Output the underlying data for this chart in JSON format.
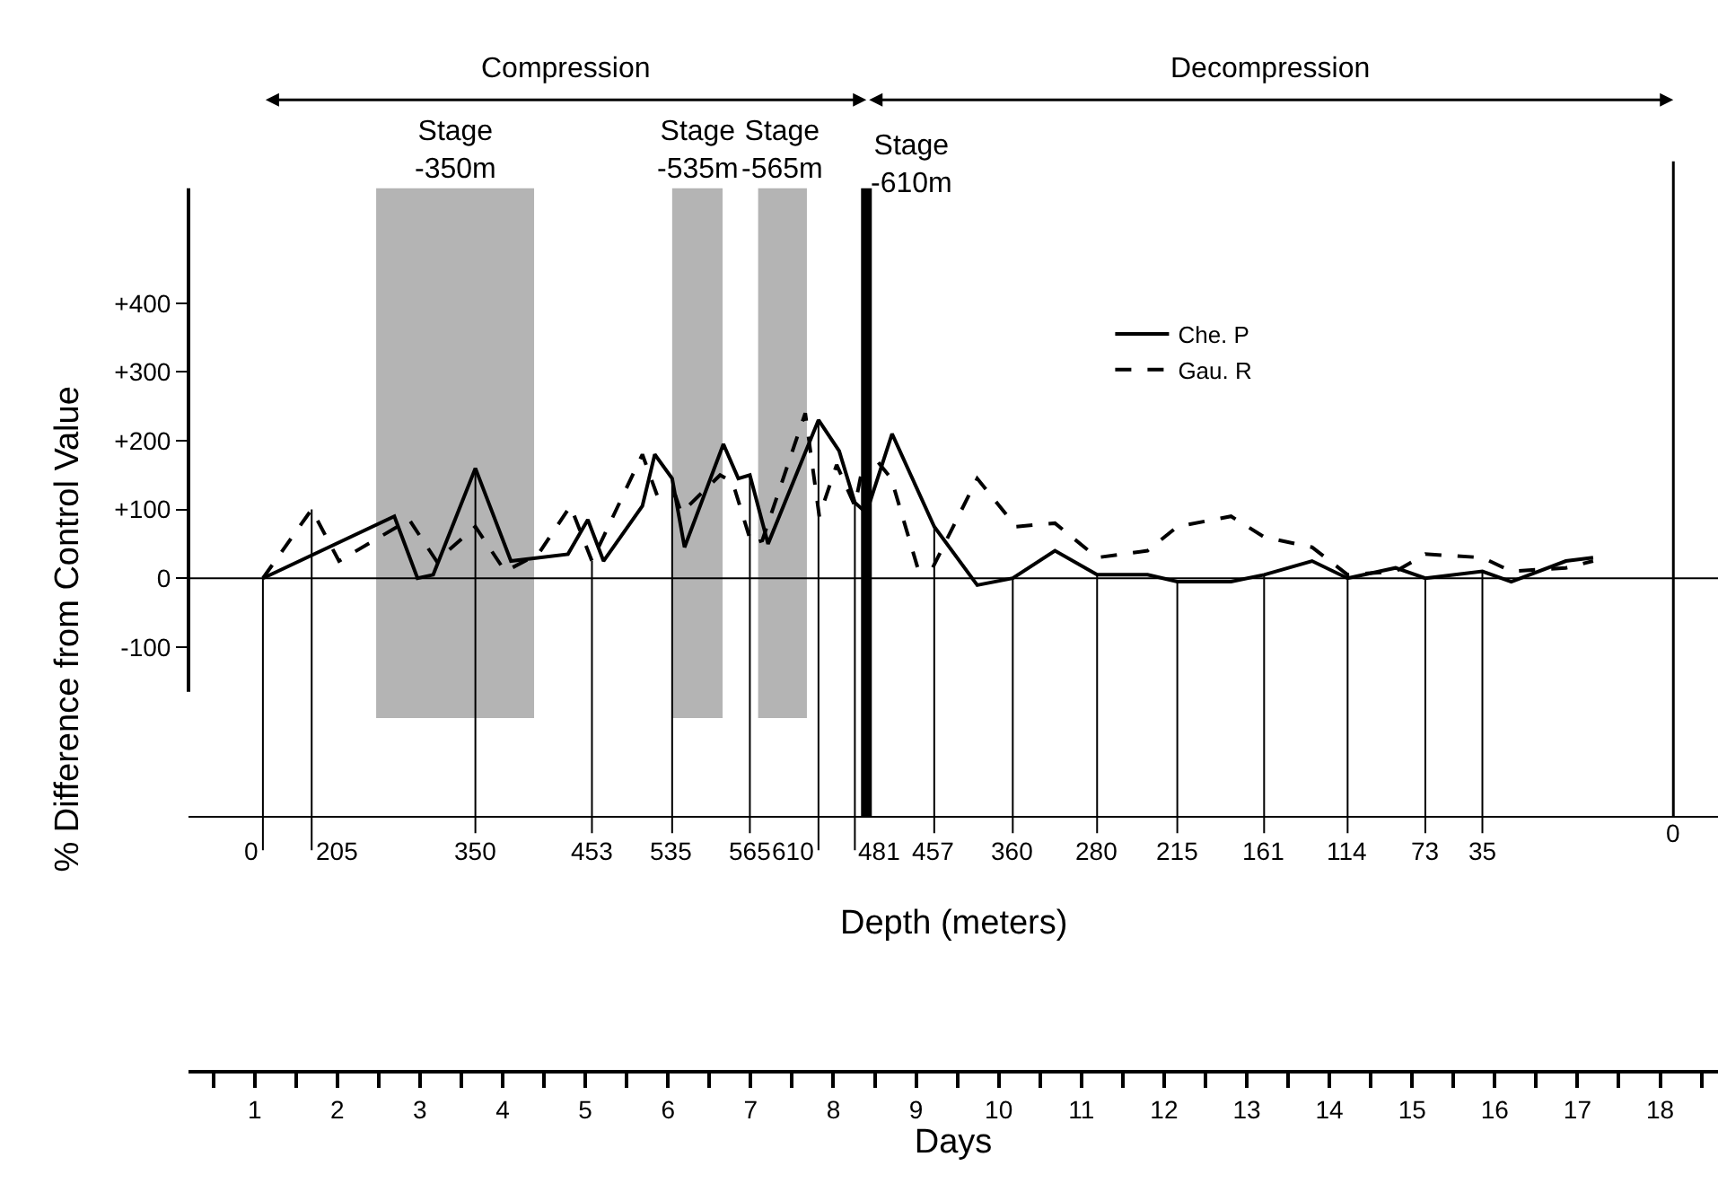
{
  "chart_data": {
    "type": "line",
    "xlabel": "Days",
    "ylabel": "% Difference from Control Value",
    "xlim": [
      0.2,
      18.7
    ],
    "ylim": [
      -715,
      567
    ],
    "xticks": [
      {
        "value": 0.5,
        "label": null
      },
      1,
      {
        "value": 1.5,
        "label": null
      },
      2,
      {
        "value": 2.5,
        "label": null
      },
      3,
      {
        "value": 3.5,
        "label": null
      },
      4,
      {
        "value": 4.5,
        "label": null
      },
      5,
      {
        "value": 5.5,
        "label": null
      },
      6,
      {
        "value": 6.5,
        "label": null
      },
      7,
      {
        "value": 7.5,
        "label": null
      },
      8,
      {
        "value": 8.5,
        "label": null
      },
      9,
      {
        "value": 9.5,
        "label": null
      },
      10,
      {
        "value": 10.5,
        "label": null
      },
      11,
      {
        "value": 11.5,
        "label": null
      },
      12,
      {
        "value": 12.5,
        "label": null
      },
      13,
      {
        "value": 13.5,
        "label": null
      },
      14,
      {
        "value": 14.5,
        "label": null
      },
      15,
      {
        "value": 15.5,
        "label": null
      },
      16,
      {
        "value": 16.5,
        "label": null
      },
      17,
      {
        "value": 17.5,
        "label": null
      },
      18,
      {
        "value": 18.5,
        "label": null
      }
    ],
    "yticks": [
      {
        "value": -100,
        "label": "-100"
      },
      0,
      {
        "value": 100,
        "label": "+100"
      },
      {
        "value": 200,
        "label": "+200"
      },
      {
        "value": 300,
        "label": "+300"
      },
      {
        "value": 400,
        "label": "+400"
      }
    ],
    "series": [
      {
        "name": "Che. P",
        "color": "#000000",
        "line_style": "solid",
        "x": [
          1.1,
          2.69,
          2.97,
          3.16,
          3.67,
          4.1,
          4.79,
          5.03,
          5.22,
          5.69,
          5.84,
          6.05,
          6.2,
          6.67,
          6.85,
          6.99,
          7.21,
          7.82,
          8.07,
          8.26,
          8.4,
          8.71,
          9.22,
          9.74,
          10.17,
          10.68,
          11.19,
          11.8,
          12.16,
          12.81,
          13.21,
          13.79,
          14.22,
          14.8,
          15.16,
          15.85,
          16.2,
          16.86,
          17.19
        ],
        "values": [
          0,
          90,
          0,
          5,
          160,
          25,
          35,
          85,
          25,
          105,
          180,
          145,
          45,
          195,
          145,
          150,
          50,
          230,
          185,
          110,
          95,
          210,
          75,
          -10,
          0,
          40,
          5,
          5,
          -5,
          -5,
          5,
          25,
          0,
          15,
          0,
          10,
          -5,
          25,
          30
        ]
      },
      {
        "name": "Gau. R",
        "color": "#000000",
        "line_style": "dashed",
        "x": [
          1.1,
          1.69,
          2.02,
          2.87,
          3.2,
          3.67,
          4.03,
          4.43,
          4.82,
          5.08,
          5.69,
          5.87,
          6.09,
          6.16,
          6.63,
          6.78,
          7.01,
          7.14,
          7.66,
          7.83,
          8.04,
          8.26,
          8.4,
          8.7,
          9.02,
          9.2,
          9.74,
          10.21,
          10.68,
          11.19,
          11.8,
          12.16,
          12.81,
          13.21,
          13.79,
          14.22,
          14.8,
          15.16,
          15.85,
          16.2,
          16.86,
          17.19
        ],
        "values": [
          0,
          100,
          25,
          85,
          25,
          75,
          10,
          35,
          105,
          25,
          180,
          120,
          120,
          95,
          150,
          140,
          50,
          55,
          240,
          90,
          165,
          105,
          190,
          145,
          15,
          15,
          145,
          75,
          80,
          30,
          40,
          75,
          90,
          60,
          45,
          5,
          10,
          35,
          30,
          10,
          15,
          25
        ]
      }
    ],
    "bands": [
      {
        "axis": "x",
        "from": 2.47,
        "to": 4.38,
        "label": "Stage\n-350m",
        "color": "#777777"
      },
      {
        "axis": "x",
        "from": 6.05,
        "to": 6.66,
        "label": "Stage\n-535m",
        "color": "#777777"
      },
      {
        "axis": "x",
        "from": 7.09,
        "to": 7.68,
        "label": "Stage\n-565m",
        "color": "#777777"
      }
    ],
    "ref_lines": [
      {
        "axis": "x",
        "value": 8.4,
        "label": "Stage\n-610m",
        "color": "#000000"
      },
      {
        "axis": "x",
        "value": 18.16,
        "label": null,
        "color": "#000000",
        "line_style": "solid"
      },
      {
        "axis": "y",
        "value": 0,
        "label": null,
        "color": "#000000"
      },
      {
        "axis": "y",
        "value": -347,
        "label": null,
        "color": "#000000"
      }
    ],
    "annotations": [
      "Compression",
      "Decompression",
      "Depth (meters)",
      "0",
      {
        "text": "0",
        "x": 1.1,
        "y": 0
      },
      {
        "text": "205",
        "x": 1.69,
        "y": 100
      },
      {
        "text": "350",
        "x": 3.67,
        "y": 160
      },
      {
        "text": "453",
        "x": 5.08,
        "y": 25
      },
      {
        "text": "535",
        "x": 6.05,
        "y": 145
      },
      {
        "text": "565",
        "x": 6.99,
        "y": 150
      },
      {
        "text": "610",
        "x": 7.82,
        "y": 230
      },
      {
        "text": "481",
        "x": 8.26,
        "y": 110
      },
      {
        "text": "457",
        "x": 9.22,
        "y": 75
      },
      {
        "text": "360",
        "x": 10.17,
        "y": 0
      },
      {
        "text": "280",
        "x": 11.19,
        "y": 5
      },
      {
        "text": "215",
        "x": 12.16,
        "y": -5
      },
      {
        "text": "161",
        "x": 13.21,
        "y": 5
      },
      {
        "text": "114",
        "x": 14.22,
        "y": 0
      },
      {
        "text": "73",
        "x": 15.16,
        "y": 0
      },
      {
        "text": "35",
        "x": 15.85,
        "y": 10
      }
    ],
    "legend": "top right"
  }
}
